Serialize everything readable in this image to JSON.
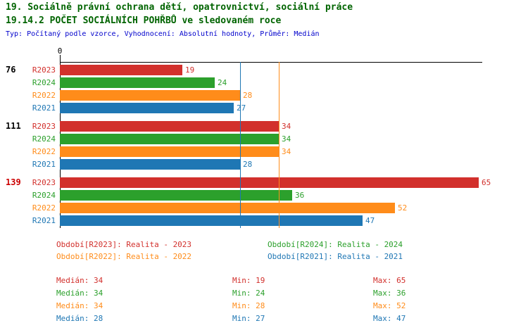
{
  "title": {
    "line1": "19. Sociálně právní ochrana dětí, opatrovnictví, sociální práce",
    "line2": "19.14.2 POČET SOCIÁLNÍCH POHŘBŮ ve sledovaném roce",
    "subtitle": "Typ: Počítaný podle vzorce, Vyhodnocení: Absolutní hodnoty, Průměr: Medián"
  },
  "colors": {
    "title": "#006400",
    "subtitle": "#0000cc",
    "axis": "#000000",
    "R2023": "#d2302c",
    "R2024": "#2ca02c",
    "R2022": "#ff8c1a",
    "R2021": "#1f77b4",
    "group_label": "#000000",
    "group_label_highlight": "#cc0000"
  },
  "chart_data": {
    "type": "bar",
    "orientation": "horizontal",
    "title": "19.14.2 POČET SOCIÁLNÍCH POHŘBŮ ve sledovaném roce",
    "xlim": [
      0,
      65
    ],
    "axis_zero_label": "0",
    "series_order": [
      "R2023",
      "R2024",
      "R2022",
      "R2021"
    ],
    "groups": [
      {
        "label": "76",
        "highlighted": false,
        "bars": [
          {
            "series": "R2023",
            "value": 19
          },
          {
            "series": "R2024",
            "value": 24
          },
          {
            "series": "R2022",
            "value": 28
          },
          {
            "series": "R2021",
            "value": 27
          }
        ]
      },
      {
        "label": "111",
        "highlighted": false,
        "bars": [
          {
            "series": "R2023",
            "value": 34
          },
          {
            "series": "R2024",
            "value": 34
          },
          {
            "series": "R2022",
            "value": 34
          },
          {
            "series": "R2021",
            "value": 28
          }
        ]
      },
      {
        "label": "139",
        "highlighted": true,
        "bars": [
          {
            "series": "R2023",
            "value": 65
          },
          {
            "series": "R2024",
            "value": 36
          },
          {
            "series": "R2022",
            "value": 52
          },
          {
            "series": "R2021",
            "value": 47
          }
        ]
      }
    ],
    "reference_lines": [
      {
        "series": "R2022",
        "value": 34
      },
      {
        "series": "R2021",
        "value": 28
      }
    ]
  },
  "legend": {
    "items": [
      {
        "series": "R2023",
        "text": "Období[R2023]: Realita - 2023"
      },
      {
        "series": "R2024",
        "text": "Období[R2024]: Realita - 2024"
      },
      {
        "series": "R2022",
        "text": "Období[R2022]: Realita - 2022"
      },
      {
        "series": "R2021",
        "text": "Období[R2021]: Realita - 2021"
      }
    ]
  },
  "stats": {
    "rows": [
      {
        "series": "R2023",
        "median": "Medián: 34",
        "min": "Min: 19",
        "max": "Max: 65"
      },
      {
        "series": "R2024",
        "median": "Medián: 34",
        "min": "Min: 24",
        "max": "Max: 36"
      },
      {
        "series": "R2022",
        "median": "Medián: 34",
        "min": "Min: 28",
        "max": "Max: 52"
      },
      {
        "series": "R2021",
        "median": "Medián: 28",
        "min": "Min: 27",
        "max": "Max: 47"
      }
    ]
  }
}
